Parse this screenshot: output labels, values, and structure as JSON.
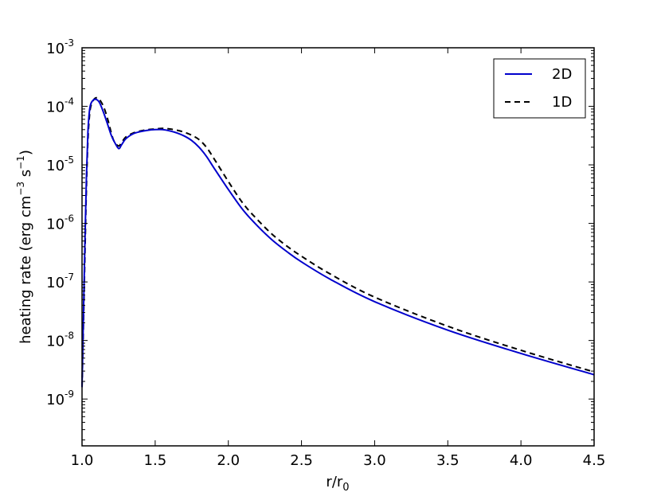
{
  "chart_data": {
    "type": "line",
    "xlabel": "r/r",
    "xlabel_sub": "0",
    "ylabel": {
      "prefix": "heating rate (erg cm",
      "exp1": "−3",
      "mid": " s",
      "exp2": "−1",
      "suffix": ")"
    },
    "xlim": [
      1.0,
      4.5
    ],
    "ylim_log10": [
      -9.8,
      -3
    ],
    "yscale": "log",
    "xticks": [
      "1.0",
      "1.5",
      "2.0",
      "2.5",
      "3.0",
      "3.5",
      "4.0",
      "4.5"
    ],
    "yticks": [
      {
        "base": "10",
        "exp": "-3"
      },
      {
        "base": "10",
        "exp": "-4"
      },
      {
        "base": "10",
        "exp": "-5"
      },
      {
        "base": "10",
        "exp": "-6"
      },
      {
        "base": "10",
        "exp": "-7"
      },
      {
        "base": "10",
        "exp": "-8"
      },
      {
        "base": "10",
        "exp": "-9"
      }
    ],
    "legend_position": "top-right",
    "grid": false,
    "series": [
      {
        "name": "2D",
        "color": "#0000cc",
        "style": "solid",
        "x": [
          1.0,
          1.01,
          1.02,
          1.03,
          1.04,
          1.05,
          1.06,
          1.08,
          1.1,
          1.12,
          1.15,
          1.18,
          1.2,
          1.22,
          1.25,
          1.27,
          1.3,
          1.35,
          1.4,
          1.45,
          1.5,
          1.55,
          1.6,
          1.65,
          1.7,
          1.75,
          1.8,
          1.85,
          1.9,
          2.0,
          2.1,
          2.2,
          2.3,
          2.4,
          2.5,
          2.7,
          3.0,
          3.5,
          4.0,
          4.5
        ],
        "y": [
          1.6e-09,
          3e-08,
          5e-07,
          6e-06,
          3.5e-05,
          8e-05,
          0.00011,
          0.00013,
          0.00013,
          0.000115,
          7.5e-05,
          4.5e-05,
          3.2e-05,
          2.5e-05,
          1.9e-05,
          2.2e-05,
          2.8e-05,
          3.4e-05,
          3.7e-05,
          3.9e-05,
          4e-05,
          4e-05,
          3.8e-05,
          3.5e-05,
          3.1e-05,
          2.6e-05,
          2e-05,
          1.4e-05,
          9e-06,
          3.8e-06,
          1.7e-06,
          9e-07,
          5.2e-07,
          3.3e-07,
          2.2e-07,
          1.1e-07,
          4.6e-08,
          1.5e-08,
          6e-09,
          2.6e-09
        ]
      },
      {
        "name": "1D",
        "color": "#000000",
        "style": "dashed",
        "x": [
          1.0,
          1.01,
          1.02,
          1.03,
          1.04,
          1.05,
          1.06,
          1.08,
          1.1,
          1.12,
          1.15,
          1.18,
          1.2,
          1.22,
          1.25,
          1.27,
          1.3,
          1.35,
          1.4,
          1.45,
          1.5,
          1.55,
          1.6,
          1.65,
          1.7,
          1.75,
          1.8,
          1.85,
          1.9,
          2.0,
          2.1,
          2.2,
          2.3,
          2.4,
          2.5,
          2.7,
          3.0,
          3.5,
          4.0,
          4.5
        ],
        "y": [
          1.6e-09,
          2e-08,
          3e-07,
          4e-06,
          2.5e-05,
          6.5e-05,
          0.0001,
          0.00013,
          0.00014,
          0.00013,
          9.5e-05,
          5.5e-05,
          3.5e-05,
          2.5e-05,
          2.1e-05,
          2.4e-05,
          3e-05,
          3.5e-05,
          3.8e-05,
          4e-05,
          4.1e-05,
          4.2e-05,
          4.1e-05,
          3.9e-05,
          3.6e-05,
          3.2e-05,
          2.7e-05,
          2e-05,
          1.3e-05,
          5.2e-06,
          2.2e-06,
          1.15e-06,
          6.5e-07,
          4.1e-07,
          2.75e-07,
          1.35e-07,
          5.5e-08,
          1.75e-08,
          6.8e-09,
          2.9e-09
        ]
      }
    ]
  }
}
